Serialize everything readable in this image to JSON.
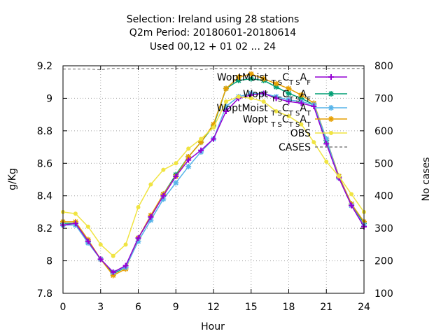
{
  "chart_data": {
    "type": "line",
    "title_lines": [
      "Selection: Ireland using    28 stations",
      "Q2m   Period: 20180601-20180614",
      "Used  00,12  + 01 02 ... 24"
    ],
    "xlabel": "Hour",
    "ylabel": "g/Kg",
    "y2label": "No cases",
    "xlim": [
      0,
      24
    ],
    "ylim": [
      7.8,
      9.2
    ],
    "y2lim": [
      100,
      800
    ],
    "xticks": [
      0,
      3,
      6,
      9,
      12,
      15,
      18,
      21,
      24
    ],
    "yticks": [
      7.8,
      8.0,
      8.2,
      8.4,
      8.6,
      8.8,
      9.0,
      9.2
    ],
    "ytick_labels": [
      "7.8",
      "8",
      "8.2",
      "8.4",
      "8.6",
      "8.8",
      "9",
      "9.2"
    ],
    "y2ticks": [
      100,
      200,
      300,
      400,
      500,
      600,
      700,
      800
    ],
    "grid": true,
    "legend_position": "top-right",
    "x": [
      0,
      1,
      2,
      3,
      4,
      5,
      6,
      7,
      8,
      9,
      10,
      11,
      12,
      13,
      14,
      15,
      16,
      17,
      18,
      19,
      20,
      21,
      22,
      23,
      24
    ],
    "series": [
      {
        "legend": [
          "WoptMoist ",
          "T S",
          "C",
          "T S",
          "A",
          "F"
        ],
        "color": "#9400d3",
        "marker": "plus",
        "values": [
          8.22,
          8.23,
          8.12,
          8.01,
          7.93,
          7.97,
          8.14,
          8.27,
          8.4,
          8.52,
          8.62,
          8.68,
          8.75,
          8.92,
          9.0,
          9.02,
          9.03,
          9.0,
          8.98,
          8.97,
          8.95,
          8.72,
          8.51,
          8.34,
          8.21
        ]
      },
      {
        "legend": [
          "Wopt ",
          "T S",
          "C",
          "T S",
          "A",
          "F"
        ],
        "color": "#009e73",
        "marker": "star",
        "values": [
          8.23,
          8.23,
          8.12,
          8.01,
          7.92,
          7.96,
          8.14,
          8.27,
          8.41,
          8.53,
          8.64,
          8.73,
          8.83,
          9.06,
          9.11,
          9.12,
          9.11,
          9.07,
          9.03,
          9.0,
          8.96,
          8.74,
          8.52,
          8.35,
          8.23
        ]
      },
      {
        "legend": [
          "WoptMoist ",
          "T S",
          "C",
          "T S",
          "A",
          "T"
        ],
        "color": "#56b4e9",
        "marker": "star",
        "values": [
          8.22,
          8.22,
          8.11,
          8.01,
          7.93,
          7.96,
          8.12,
          8.25,
          8.38,
          8.48,
          8.58,
          8.67,
          8.75,
          8.95,
          9.01,
          9.03,
          9.03,
          9.01,
          8.99,
          8.98,
          8.96,
          8.75,
          8.51,
          8.34,
          8.22
        ]
      },
      {
        "legend": [
          "Wopt ",
          "T S",
          "C",
          "T S",
          "A",
          "T"
        ],
        "color": "#e69f00",
        "marker": "star",
        "values": [
          8.24,
          8.24,
          8.13,
          8.01,
          7.91,
          7.95,
          8.14,
          8.28,
          8.41,
          8.52,
          8.64,
          8.73,
          8.84,
          9.06,
          9.13,
          9.15,
          9.12,
          9.09,
          9.06,
          9.02,
          8.97,
          8.75,
          8.52,
          8.35,
          8.24
        ]
      },
      {
        "legend": [
          "OBS"
        ],
        "color": "#f0e442",
        "marker": "circle",
        "values": [
          8.3,
          8.29,
          8.21,
          8.1,
          8.03,
          8.1,
          8.33,
          8.47,
          8.56,
          8.6,
          8.69,
          8.75,
          8.82,
          8.98,
          9.01,
          9.0,
          8.98,
          8.92,
          8.89,
          8.84,
          8.73,
          8.61,
          8.52,
          8.41,
          8.3
        ]
      },
      {
        "legend": [
          "CASES"
        ],
        "color": "#808080",
        "marker": "none",
        "dashed": true,
        "axis": "y2",
        "values": [
          790,
          790,
          790,
          788,
          792,
          792,
          792,
          792,
          792,
          792,
          792,
          788,
          792,
          792,
          792,
          792,
          792,
          792,
          792,
          792,
          792,
          792,
          792,
          792,
          792
        ]
      }
    ]
  }
}
